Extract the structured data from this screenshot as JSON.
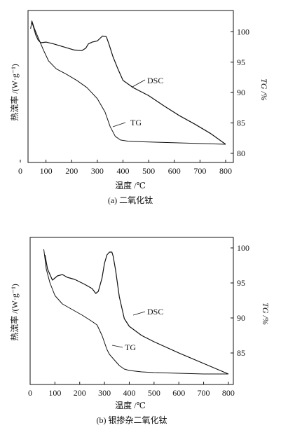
{
  "chart_data": [
    {
      "type": "line",
      "caption": "(a) 二氧化钛",
      "xlabel": "温度 /℃",
      "ylabel_left": "热流率 /(W·g⁻¹)",
      "ylabel_right": "TG /%",
      "xlim": [
        30,
        830
      ],
      "xticks": [
        0,
        100,
        200,
        300,
        400,
        500,
        600,
        700,
        800
      ],
      "ylim_right": [
        78.5,
        103.5
      ],
      "yticks_right": [
        80,
        85,
        90,
        95,
        100
      ],
      "series": [
        {
          "name": "DSC",
          "axis": "left-unscaled",
          "x": [
            45,
            50,
            60,
            70,
            80,
            100,
            130,
            170,
            210,
            240,
            255,
            265,
            280,
            300,
            320,
            335,
            345,
            360,
            380,
            400,
            440,
            500,
            560,
            620,
            680,
            740,
            800
          ],
          "y": [
            101.5,
            101.0,
            99.5,
            98.6,
            98.2,
            98.3,
            98.0,
            97.5,
            97.0,
            96.9,
            97.3,
            98.0,
            98.3,
            98.5,
            99.3,
            99.2,
            98.0,
            96.0,
            93.9,
            92.0,
            90.8,
            89.5,
            87.8,
            86.2,
            84.8,
            83.3,
            81.5
          ]
        },
        {
          "name": "TG",
          "axis": "right",
          "x": [
            40,
            45,
            55,
            70,
            90,
            110,
            140,
            180,
            220,
            260,
            300,
            330,
            350,
            370,
            390,
            420,
            480,
            560,
            640,
            720,
            800
          ],
          "y": [
            100.5,
            101.8,
            100.5,
            99.0,
            97.0,
            95.2,
            93.9,
            93.0,
            92.0,
            90.8,
            89.0,
            86.8,
            84.4,
            82.8,
            82.2,
            82.0,
            81.9,
            81.8,
            81.7,
            81.6,
            81.5
          ]
        }
      ],
      "labels": {
        "dsc": "DSC",
        "tg": "TG"
      }
    },
    {
      "type": "line",
      "caption": "(b) 银掺杂二氧化钛",
      "xlabel": "温度 /℃",
      "ylabel_left": "热流率 /(W·g⁻¹)",
      "ylabel_right": "TG /%",
      "xlim": [
        0,
        820
      ],
      "xticks": [
        0,
        100,
        200,
        300,
        400,
        500,
        600,
        700,
        800
      ],
      "ylim_right": [
        80.5,
        101.5
      ],
      "yticks_right": [
        85,
        90,
        95,
        100
      ],
      "series": [
        {
          "name": "DSC",
          "axis": "left-unscaled",
          "x": [
            60,
            70,
            90,
            110,
            130,
            150,
            180,
            220,
            250,
            265,
            275,
            290,
            300,
            310,
            320,
            330,
            335,
            345,
            360,
            380,
            400,
            450,
            500,
            600,
            700,
            800
          ],
          "y": [
            99.0,
            97.0,
            95.4,
            96.0,
            96.2,
            95.8,
            95.5,
            94.8,
            94.2,
            93.5,
            93.8,
            95.7,
            97.8,
            99.0,
            99.4,
            99.4,
            98.8,
            96.8,
            93.0,
            89.9,
            88.8,
            87.5,
            86.6,
            85.0,
            83.5,
            82.0
          ]
        },
        {
          "name": "TG",
          "axis": "right",
          "x": [
            55,
            65,
            80,
            100,
            130,
            170,
            210,
            250,
            270,
            290,
            300,
            310,
            320,
            340,
            360,
            380,
            400,
            450,
            500,
            600,
            700,
            800
          ],
          "y": [
            99.8,
            97.0,
            95.0,
            93.2,
            92.0,
            91.2,
            90.4,
            89.5,
            89.0,
            87.5,
            86.5,
            85.5,
            84.8,
            84.0,
            83.2,
            82.7,
            82.5,
            82.3,
            82.2,
            82.1,
            82.0,
            82.0
          ]
        }
      ],
      "labels": {
        "dsc": "DSC",
        "tg": "TG"
      }
    }
  ]
}
